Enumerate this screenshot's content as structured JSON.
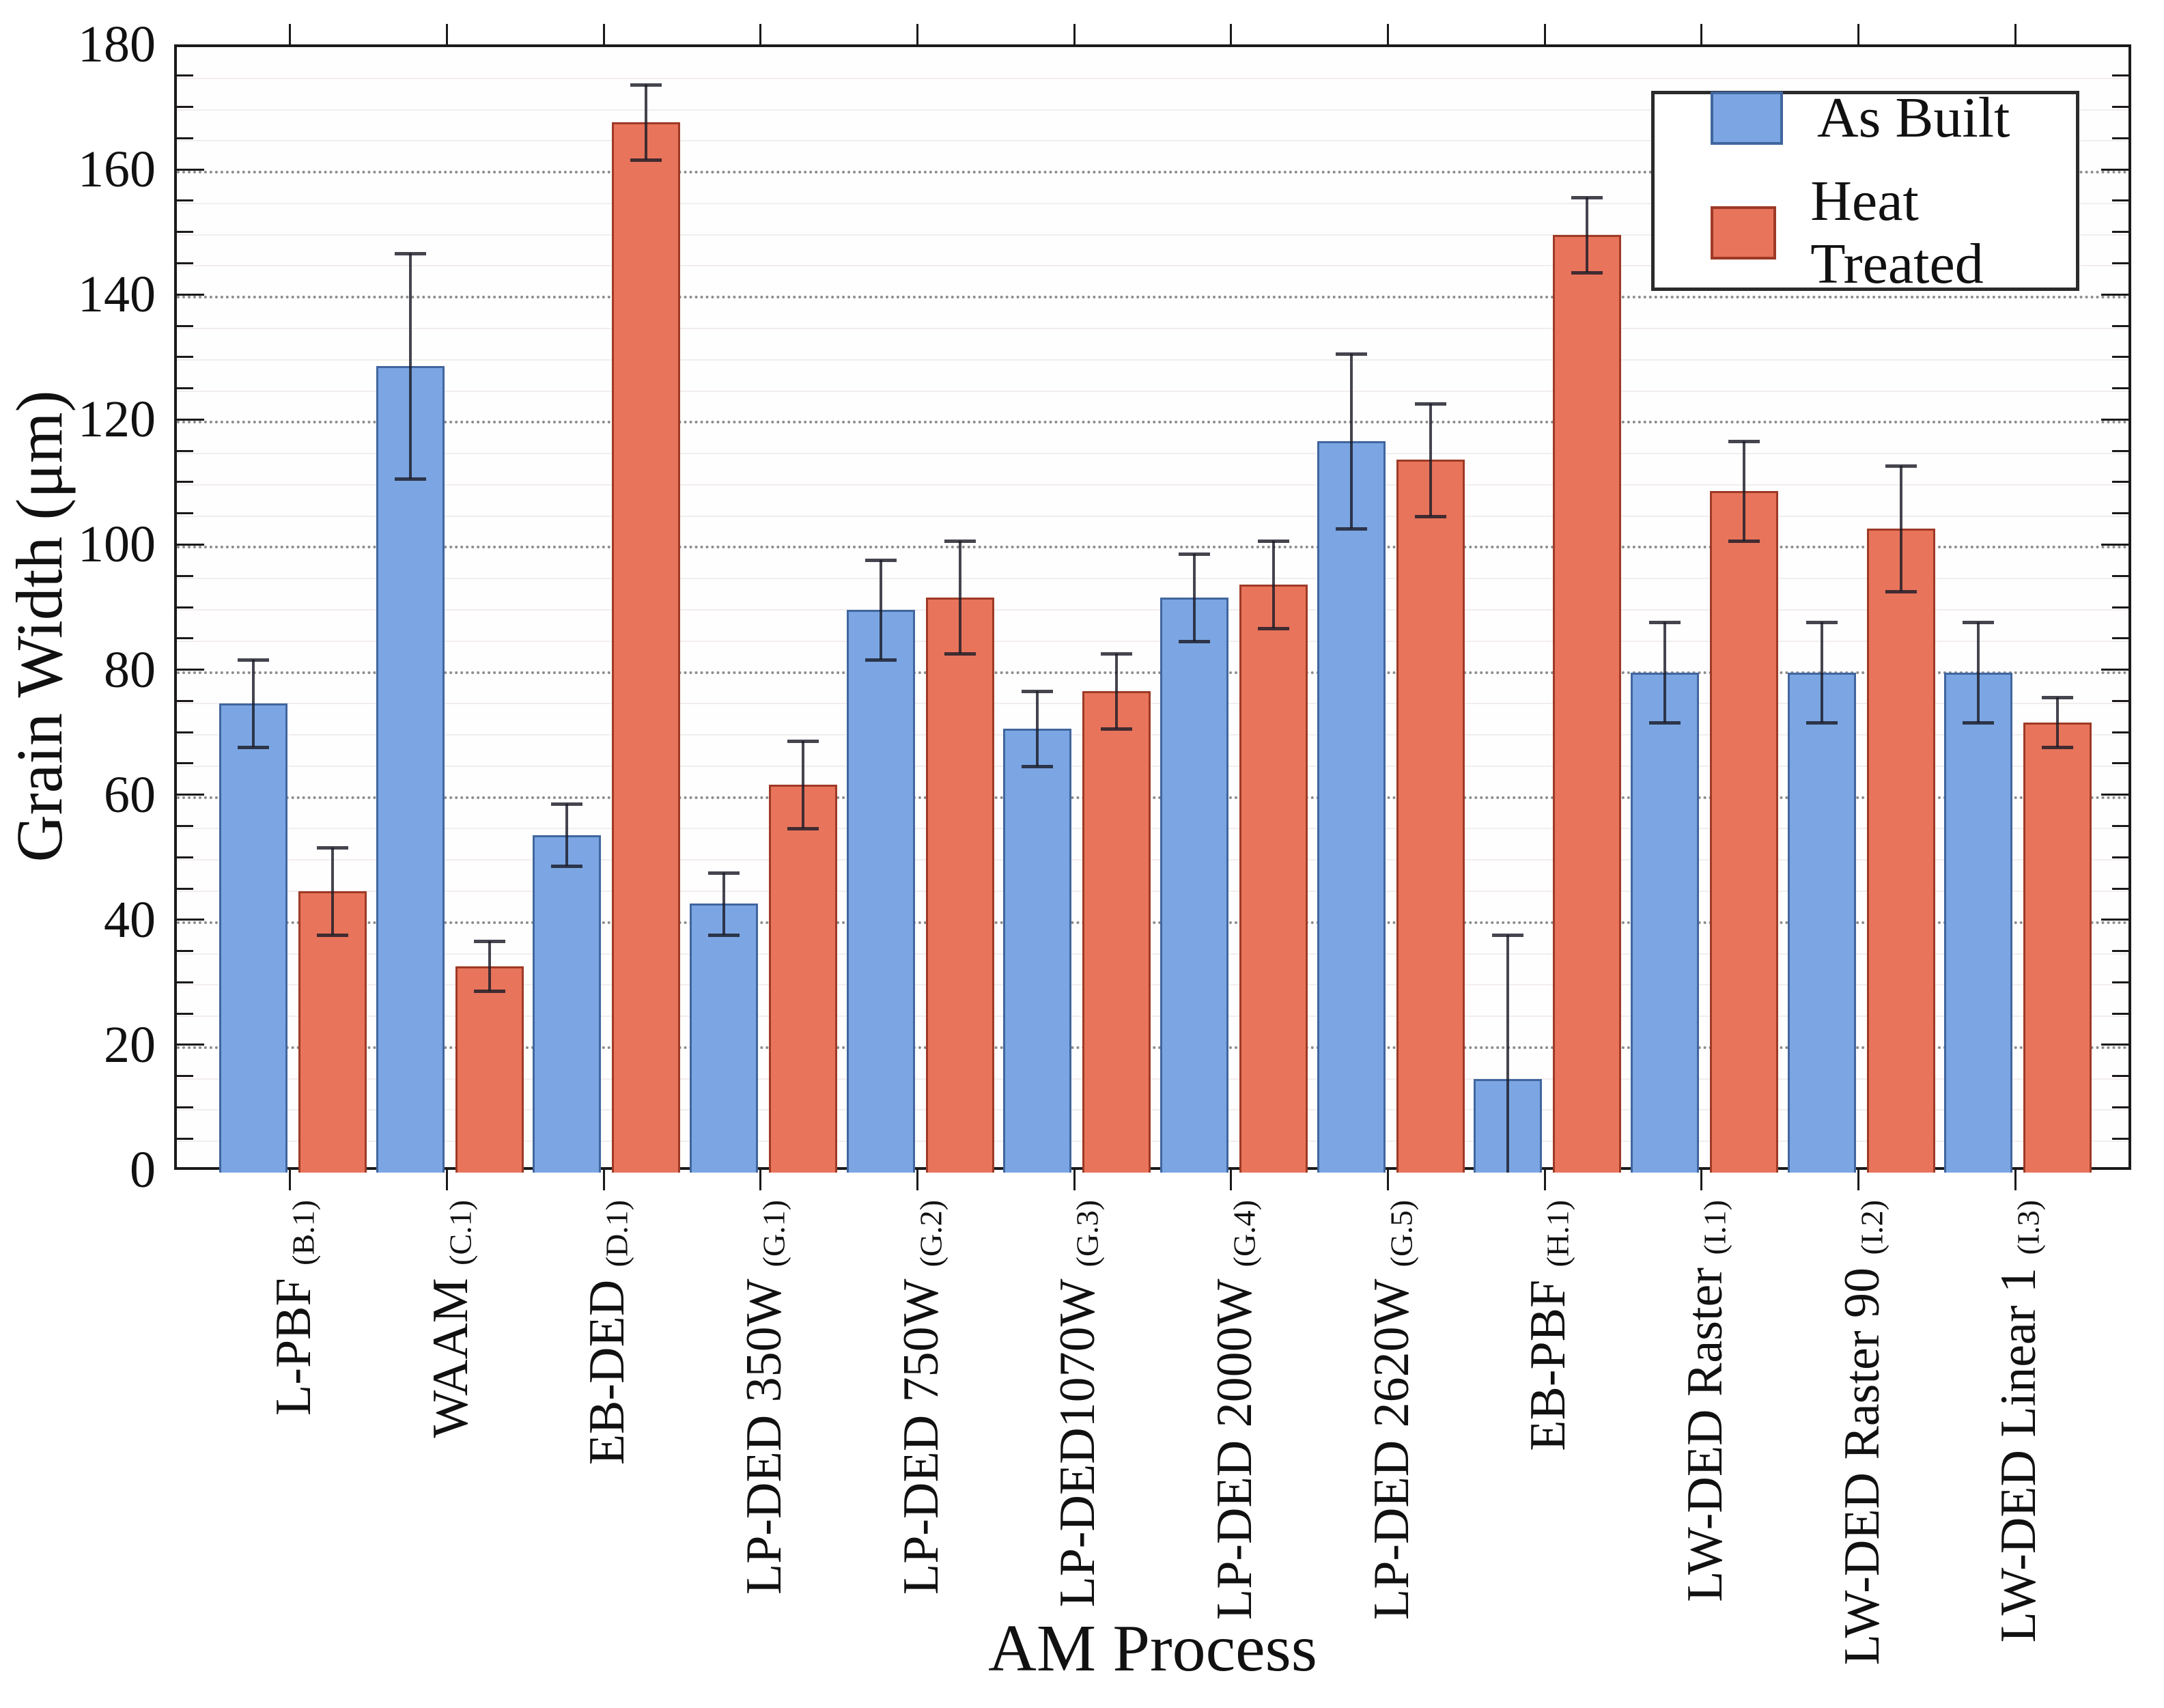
{
  "chart_data": {
    "type": "bar",
    "title": "",
    "xlabel": "AM Process",
    "ylabel": "Grain Width (μm)",
    "ylim": [
      0,
      180
    ],
    "ytick_step": 20,
    "yminortick_step": 5,
    "grid": "horizontal: dark dotted major lines every 20, faint minor lines every 5",
    "legend_position": "top-right inside plot",
    "axis_color": "#1a1a1a",
    "error_bar_color": "#2b2b33",
    "categories": [
      {
        "label": "L-PBF",
        "code": "(B.1)"
      },
      {
        "label": "WAAM",
        "code": "(C.1)"
      },
      {
        "label": "EB-DED",
        "code": "(D.1)"
      },
      {
        "label": "LP-DED 350W",
        "code": "(G.1)"
      },
      {
        "label": "LP-DED 750W",
        "code": "(G.2)"
      },
      {
        "label": "LP-DED1070W",
        "code": "(G.3)"
      },
      {
        "label": "LP-DED 2000W",
        "code": "(G.4)"
      },
      {
        "label": "LP-DED 2620W",
        "code": "(G.5)"
      },
      {
        "label": "EB-PBF",
        "code": "(H.1)"
      },
      {
        "label": "LW-DED Raster",
        "code": "(I.1)"
      },
      {
        "label": "LW-DED Raster 90",
        "code": "(I.2)"
      },
      {
        "label": "LW-DED Linear 1",
        "code": "(I.3)"
      }
    ],
    "series": [
      {
        "name": "As Built",
        "fill": "#7BA6E3",
        "edge": "#41669E",
        "values": [
          75,
          129,
          54,
          43,
          90,
          71,
          92,
          117,
          15,
          80,
          80,
          80
        ],
        "errors": [
          7,
          18,
          5,
          5,
          8,
          6,
          7,
          14,
          23,
          8,
          8,
          8
        ]
      },
      {
        "name": "Heat Treated",
        "fill": "#E8745B",
        "edge": "#9E3A26",
        "values": [
          45,
          33,
          168,
          62,
          92,
          77,
          94,
          114,
          150,
          109,
          103,
          72
        ],
        "errors": [
          7,
          4,
          6,
          7,
          9,
          6,
          7,
          9,
          6,
          8,
          10,
          4
        ]
      }
    ]
  }
}
